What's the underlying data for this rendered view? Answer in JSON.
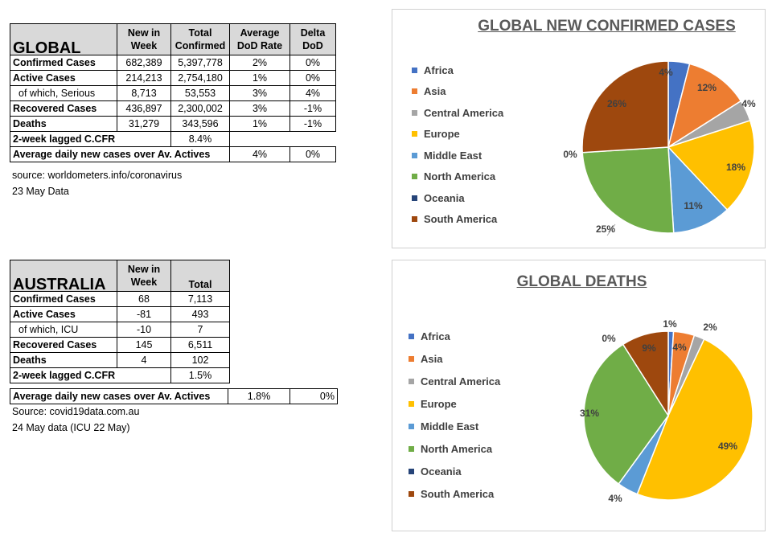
{
  "global_table": {
    "title": "GLOBAL",
    "headers": [
      [
        "New in",
        "Week"
      ],
      [
        "Total",
        "Confirmed"
      ],
      [
        "Average",
        "DoD  Rate"
      ],
      [
        "Delta",
        "DoD"
      ]
    ],
    "rows": [
      {
        "label": "Confirmed Cases",
        "sub": false,
        "cells": [
          "682,389",
          "5,397,778",
          "2%",
          "0%"
        ]
      },
      {
        "label": "Active Cases",
        "sub": false,
        "cells": [
          "214,213",
          "2,754,180",
          "1%",
          "0%"
        ]
      },
      {
        "label": "of which, Serious",
        "sub": true,
        "cells": [
          "8,713",
          "53,553",
          "3%",
          "4%"
        ]
      },
      {
        "label": "Recovered Cases",
        "sub": false,
        "cells": [
          "436,897",
          "2,300,002",
          "3%",
          "-1%"
        ]
      },
      {
        "label": "Deaths",
        "sub": false,
        "cells": [
          "31,279",
          "343,596",
          "1%",
          "-1%"
        ]
      }
    ],
    "cfr": {
      "label": "2-week lagged C.CFR",
      "value": "8.4%"
    },
    "avg": {
      "label": "Average daily new cases over Av. Actives",
      "values": [
        "4%",
        "0%"
      ]
    },
    "source": "source: worldometers.info/coronavirus",
    "date": "23 May Data"
  },
  "australia_table": {
    "title": "AUSTRALIA",
    "headers": [
      [
        "New in",
        "Week"
      ],
      [
        "Total"
      ]
    ],
    "rows": [
      {
        "label": "Confirmed Cases",
        "sub": false,
        "cells": [
          "68",
          "7,113"
        ]
      },
      {
        "label": "Active Cases",
        "sub": false,
        "cells": [
          "-81",
          "493"
        ]
      },
      {
        "label": "of which, ICU",
        "sub": true,
        "cells": [
          "-10",
          "7"
        ]
      },
      {
        "label": "Recovered Cases",
        "sub": false,
        "cells": [
          "145",
          "6,511"
        ]
      },
      {
        "label": "Deaths",
        "sub": false,
        "cells": [
          "4",
          "102"
        ]
      }
    ],
    "cfr": {
      "label": "2-week lagged C.CFR",
      "value": "1.5%"
    },
    "avg": {
      "label": "Average daily new cases over Av. Actives",
      "values": [
        "1.8%",
        "0%"
      ]
    },
    "source": "Source: covid19data.com.au",
    "date": "24 May data (ICU 22 May)"
  },
  "chart_data": [
    {
      "type": "pie",
      "title": "GLOBAL NEW CONFIRMED CASES",
      "categories": [
        "Africa",
        "Asia",
        "Central America",
        "Europe",
        "Middle East",
        "North America",
        "Oceania",
        "South America"
      ],
      "values": [
        4,
        12,
        4,
        18,
        11,
        25,
        0,
        26
      ],
      "labels": [
        "4%",
        "12%",
        "4%",
        "18%",
        "11%",
        "25%",
        "0%",
        "26%"
      ],
      "colors": [
        "#4472c4",
        "#ed7d31",
        "#a5a5a5",
        "#ffc000",
        "#5b9bd5",
        "#70ad47",
        "#264478",
        "#9e480e"
      ],
      "legend": "left"
    },
    {
      "type": "pie",
      "title": "GLOBAL DEATHS",
      "categories": [
        "Africa",
        "Asia",
        "Central America",
        "Europe",
        "Middle East",
        "North America",
        "Oceania",
        "South America"
      ],
      "values": [
        1,
        4,
        2,
        49,
        4,
        31,
        0,
        9
      ],
      "labels": [
        "1%",
        "4%",
        "2%",
        "49%",
        "4%",
        "31%",
        "0%",
        "9%"
      ],
      "colors": [
        "#4472c4",
        "#ed7d31",
        "#a5a5a5",
        "#ffc000",
        "#5b9bd5",
        "#70ad47",
        "#264478",
        "#9e480e"
      ],
      "legend": "left"
    }
  ]
}
